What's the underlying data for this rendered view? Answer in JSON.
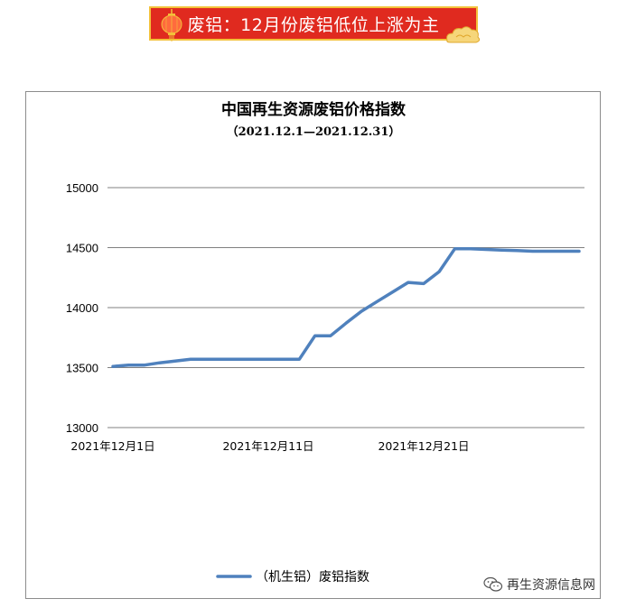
{
  "banner": {
    "title": "废铝：12月份废铝低位上涨为主",
    "lantern_icon": "lantern-icon",
    "cloud_icon": "auspicious-cloud-icon"
  },
  "watermark": {
    "text": "再生资源信息网",
    "icon": "wechat-icon"
  },
  "colors": {
    "banner_bg": "#e02a1f",
    "banner_border": "#f3c13a",
    "series": "#4f81bd",
    "grid": "#808080"
  },
  "chart_data": {
    "type": "line",
    "title": "中国再生资源废铝价格指数",
    "subtitle": "（2021.12.1—2021.12.31）",
    "xlabel": "",
    "ylabel": "",
    "ylim": [
      13000,
      15000
    ],
    "yticks": [
      "15000",
      "14500",
      "14000",
      "13500",
      "13000"
    ],
    "xtick_labels": [
      "2021年12月1日",
      "2021年12月11日",
      "2021年12月21日"
    ],
    "xlim": [
      1,
      31
    ],
    "grid": true,
    "legend": "bottom",
    "series": [
      {
        "name": "（机生铝）废铝指数",
        "x": [
          1,
          2,
          3,
          4,
          5,
          6,
          7,
          8,
          9,
          10,
          11,
          12,
          13,
          14,
          15,
          16,
          17,
          18,
          19,
          20,
          21,
          22,
          23,
          24,
          25,
          26,
          27,
          28,
          29,
          30,
          31
        ],
        "values": [
          13510,
          13520,
          13520,
          13540,
          13555,
          13570,
          13570,
          13570,
          13570,
          13570,
          13570,
          13570,
          13570,
          13765,
          13765,
          13870,
          13970,
          14050,
          14130,
          14210,
          14200,
          14300,
          14490,
          14490,
          14485,
          14480,
          14475,
          14470,
          14470,
          14470,
          14470
        ]
      }
    ]
  }
}
